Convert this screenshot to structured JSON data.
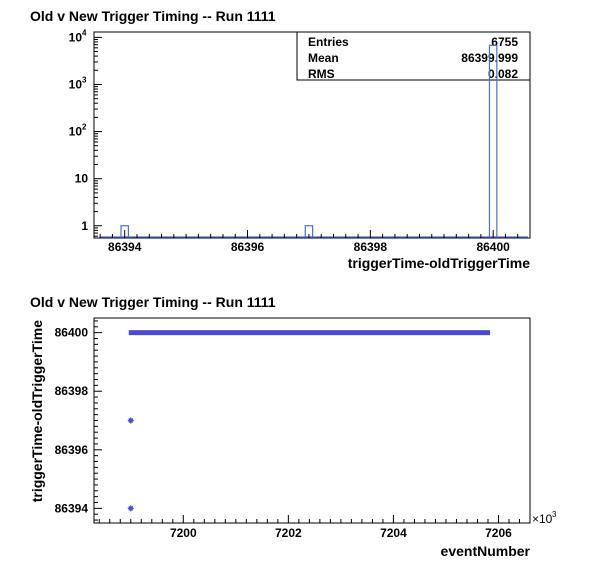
{
  "chart_data": [
    {
      "type": "histogram",
      "title": "Old v New Trigger Timing -- Run 1111",
      "xlabel": "triggerTime-oldTriggerTime",
      "ylabel": "",
      "y_scale": "log",
      "xlim": [
        86393.5,
        86400.6
      ],
      "ylim": [
        0.55,
        13000
      ],
      "x_ticks": [
        "86394",
        "86396",
        "86398",
        "86400"
      ],
      "y_ticks": [
        "1",
        "10",
        "10",
        "10",
        "10"
      ],
      "y_tick_exponents": [
        "",
        "",
        "2",
        "3",
        "4"
      ],
      "bin_width": 0.12,
      "bins": [
        {
          "x": 86394.0,
          "count": 1
        },
        {
          "x": 86397.0,
          "count": 1
        },
        {
          "x": 86400.0,
          "count": 6753
        }
      ],
      "stats": {
        "labels": [
          "Entries",
          "Mean",
          "RMS"
        ],
        "values": [
          "6755",
          "86399.999",
          "0.082"
        ]
      },
      "series_color": "#4a6fd6"
    },
    {
      "type": "scatter",
      "title": "Old v New Trigger Timing -- Run 1111",
      "xlabel": "eventNumber",
      "ylabel": "triggerTime-oldTriggerTime",
      "x_multiplier": "×10",
      "x_multiplier_exp": "3",
      "xlim": [
        7198.3,
        7206.6
      ],
      "ylim": [
        86393.5,
        86400.5
      ],
      "x_ticks": [
        "7200",
        "7202",
        "7204",
        "7206"
      ],
      "y_ticks": [
        "86394",
        "86396",
        "86398",
        "86400"
      ],
      "points": [
        {
          "x": 7199.0,
          "y": 86394
        },
        {
          "x": 7199.0,
          "y": 86397
        }
      ],
      "band": {
        "x_start": 7199.0,
        "x_end": 7205.8,
        "y": 86400
      },
      "series_color": "#4a4ad6"
    }
  ]
}
